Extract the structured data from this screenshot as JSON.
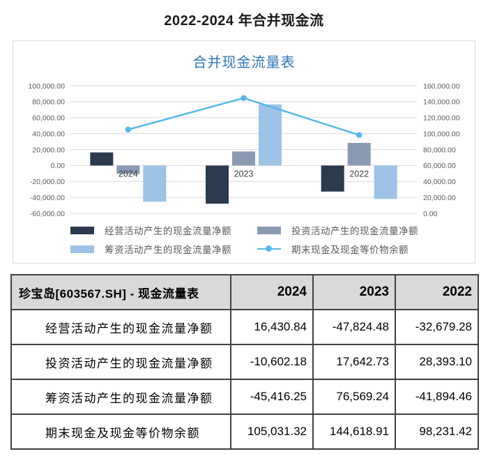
{
  "page": {
    "title": "2022-2024 年合并现金流"
  },
  "chart": {
    "title": "合并现金流量表",
    "legend": [
      {
        "label": "经营活动产生的现金流量净额",
        "color": "#2b3a4d",
        "marker": "bar"
      },
      {
        "label": "投资活动产生的现金流量净额",
        "color": "#8a9ab3",
        "marker": "bar"
      },
      {
        "label": "筹资活动产生的现金流量净额",
        "color": "#9dc3e6",
        "marker": "bar"
      },
      {
        "label": "期末现金及现金等价物余额",
        "color": "#55b8ea",
        "marker": "line"
      }
    ]
  },
  "chart_data": {
    "type": "combo-bar-line",
    "title": "合并现金流量表",
    "categories": [
      "2024",
      "2023",
      "2022"
    ],
    "bar_series": [
      {
        "name": "经营活动产生的现金流量净额",
        "axis": "left",
        "color": "#2b3a4d",
        "values": [
          16430.84,
          -47824.48,
          -32679.28
        ]
      },
      {
        "name": "投资活动产生的现金流量净额",
        "axis": "left",
        "color": "#8a9ab3",
        "values": [
          -10602.18,
          17642.73,
          28393.1
        ]
      },
      {
        "name": "筹资活动产生的现金流量净额",
        "axis": "left",
        "color": "#9dc3e6",
        "values": [
          -45416.25,
          76569.24,
          -41894.46
        ]
      }
    ],
    "line_series": [
      {
        "name": "期末现金及现金等价物余额",
        "axis": "right",
        "color": "#55b8ea",
        "values": [
          105031.32,
          144618.91,
          98231.42
        ]
      }
    ],
    "left_axis": {
      "min": -60000,
      "max": 100000,
      "step": 20000,
      "tick_labels": [
        "100,000.00",
        "80,000.00",
        "60,000.00",
        "40,000.00",
        "20,000.00",
        "0.00",
        "-20,000.00",
        "-40,000.00",
        "-60,000.00"
      ]
    },
    "right_axis": {
      "min": 0,
      "max": 160000,
      "step": 20000,
      "tick_labels": [
        "160,000.00",
        "140,000.00",
        "120,000.00",
        "100,000.00",
        "80,000.00",
        "60,000.00",
        "40,000.00",
        "20,000.00",
        "0.00"
      ]
    },
    "grid": true,
    "legend_position": "bottom"
  },
  "table": {
    "header": [
      "珍宝岛[603567.SH] - 现金流量表",
      "2024",
      "2023",
      "2022"
    ],
    "rows": [
      {
        "label": "经营活动产生的现金流量净额",
        "values": [
          "16,430.84",
          "-47,824.48",
          "-32,679.28"
        ]
      },
      {
        "label": "投资活动产生的现金流量净额",
        "values": [
          "-10,602.18",
          "17,642.73",
          "28,393.10"
        ]
      },
      {
        "label": "筹资活动产生的现金流量净额",
        "values": [
          "-45,416.25",
          "76,569.24",
          "-41,894.46"
        ]
      },
      {
        "label": "期末现金及现金等价物余额",
        "values": [
          "105,031.32",
          "144,618.91",
          "98,231.42"
        ]
      }
    ]
  },
  "colors": {
    "chart_title": "#2e75b6",
    "gridline": "#d9d9d9",
    "axis_text": "#595959",
    "category_text": "#404040",
    "table_border": "#404040",
    "table_header_bg": "#d9d9d9"
  }
}
